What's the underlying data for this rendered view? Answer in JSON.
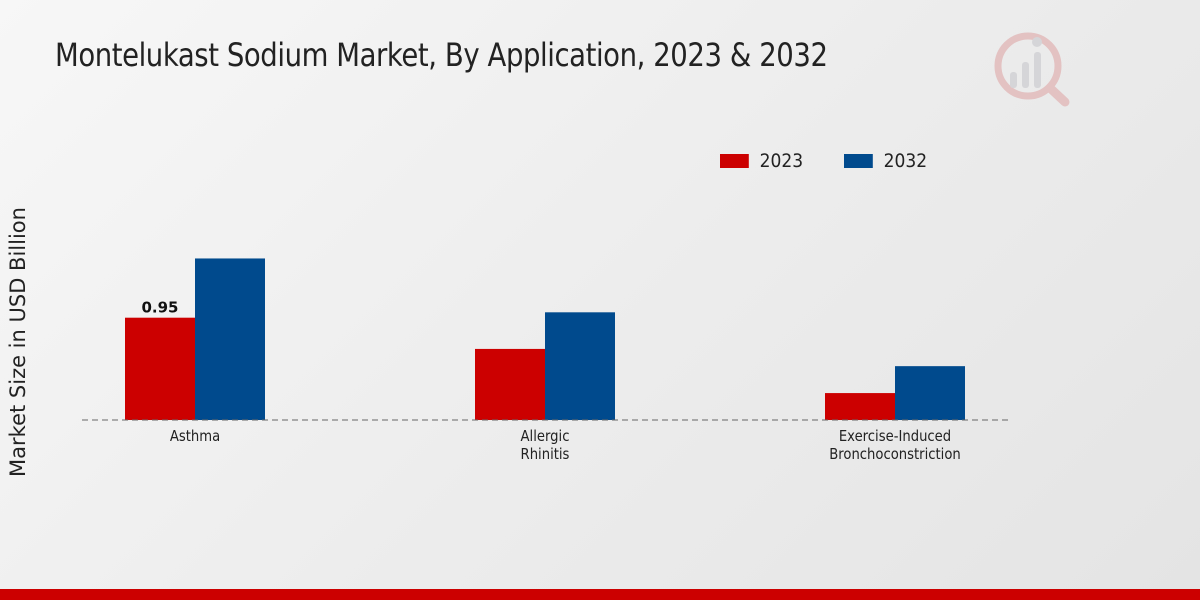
{
  "header": {
    "title": "Montelukast Sodium Market, By Application, 2023 & 2032"
  },
  "colors": {
    "series_2023": "#cc0000",
    "series_2032": "#004a8d",
    "bottom_bar": "#cc0000"
  },
  "logo": {
    "icon": "chart-magnifier-logo-icon"
  },
  "chart_data": {
    "type": "bar",
    "title": "Montelukast Sodium Market, By Application, 2023 & 2032",
    "xlabel": "",
    "ylabel": "Market Size in USD Billion",
    "categories": [
      "Asthma",
      "Allergic Rhinitis",
      "Exercise-Induced Bronchoconstriction"
    ],
    "category_lines": [
      [
        "Asthma"
      ],
      [
        "Allergic",
        "Rhinitis"
      ],
      [
        "Exercise-Induced",
        "Bronchoconstriction"
      ]
    ],
    "series": [
      {
        "name": "2023",
        "color": "#cc0000",
        "values": [
          0.95,
          0.66,
          0.25
        ]
      },
      {
        "name": "2032",
        "color": "#004a8d",
        "values": [
          1.5,
          1.0,
          0.5
        ]
      }
    ],
    "data_labels": [
      {
        "series": 0,
        "index": 0,
        "text": "0.95"
      }
    ],
    "ylim": [
      0,
      2.6
    ],
    "grid": false,
    "legend": "top-right"
  }
}
